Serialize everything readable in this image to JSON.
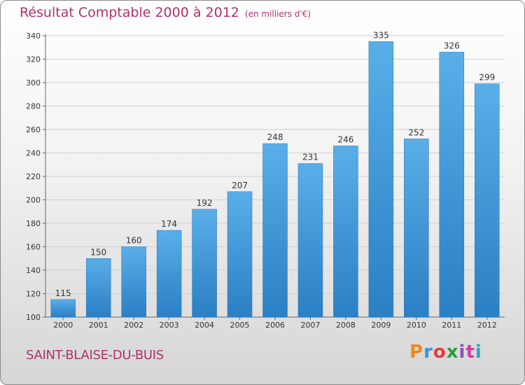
{
  "title": "Résultat Comptable 2000 à 2012",
  "subtitle": "(en milliers d'€)",
  "commune": "SAINT-BLAISE-DU-BUIS",
  "logo": {
    "text": "Proxiti",
    "letters": [
      "P",
      "r",
      "o",
      "x",
      "i",
      "t",
      "i"
    ],
    "colors": [
      "#f08a1c",
      "#3d8fd6",
      "#e23b3b",
      "#2e9a3c",
      "#8a4fb8",
      "#d63a9a",
      "#2aa3c8"
    ]
  },
  "colors": {
    "bar": "#3a92d8",
    "title": "#b0306e",
    "grid": "#d0d0d0"
  },
  "chart_data": {
    "type": "bar",
    "categories": [
      "2000",
      "2001",
      "2002",
      "2003",
      "2004",
      "2005",
      "2006",
      "2007",
      "2008",
      "2009",
      "2010",
      "2011",
      "2012"
    ],
    "values": [
      115,
      150,
      160,
      174,
      192,
      207,
      248,
      231,
      246,
      335,
      252,
      326,
      299
    ],
    "ylim": [
      100,
      340
    ],
    "yticks": [
      100,
      120,
      140,
      160,
      180,
      200,
      220,
      240,
      260,
      280,
      300,
      320,
      340
    ],
    "grid": true,
    "data_labels": true
  }
}
